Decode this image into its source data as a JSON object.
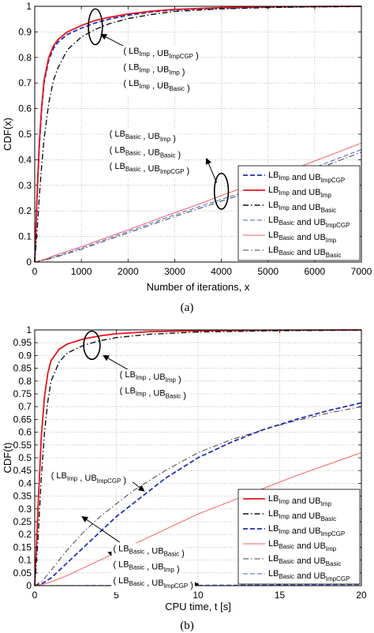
{
  "chart_data": [
    {
      "type": "line",
      "caption": "(a)",
      "xlabel": "Number of iterations, x",
      "ylabel": "CDF(x)",
      "xlim": [
        0,
        7000
      ],
      "ylim": [
        0,
        1
      ],
      "xticks": [
        0,
        1000,
        2000,
        3000,
        4000,
        5000,
        6000,
        7000
      ],
      "xtick_labels": [
        "0",
        "1000",
        "2000",
        "3000",
        "4000",
        "5000",
        "6000",
        "7000"
      ],
      "yticks": [
        0,
        0.1,
        0.2,
        0.3,
        0.4,
        0.5,
        0.6,
        0.7,
        0.8,
        0.9,
        1
      ],
      "ytick_labels": [
        "0",
        "0.1",
        "0.2",
        "0.3",
        "0.4",
        "0.5",
        "0.6",
        "0.7",
        "0.8",
        "0.9",
        "1"
      ],
      "grid": true,
      "legend_position": "bottom-right",
      "series": [
        {
          "legend": [
            [
              "LB",
              "Imp"
            ],
            [
              " and UB",
              "ImpCGP"
            ]
          ],
          "color": "#1f2fbf",
          "style": "dashed",
          "width": 1.8,
          "x": [
            0,
            50,
            100,
            150,
            200,
            300,
            400,
            500,
            700,
            1000,
            1300,
            1600,
            2000,
            2500,
            3000,
            4000,
            5000,
            6000,
            7000
          ],
          "y": [
            0,
            0.25,
            0.46,
            0.6,
            0.7,
            0.79,
            0.835,
            0.86,
            0.89,
            0.915,
            0.935,
            0.95,
            0.965,
            0.978,
            0.986,
            0.993,
            0.997,
            0.999,
            1
          ]
        },
        {
          "legend": [
            [
              "LB",
              "Imp"
            ],
            [
              " and UB",
              "Imp"
            ]
          ],
          "color": "#e8141c",
          "style": "solid",
          "width": 1.8,
          "x": [
            0,
            50,
            100,
            150,
            200,
            300,
            400,
            500,
            700,
            1000,
            1300,
            1600,
            2000,
            2500,
            3000,
            4000,
            5000,
            6000,
            7000
          ],
          "y": [
            0,
            0.26,
            0.47,
            0.61,
            0.71,
            0.8,
            0.845,
            0.87,
            0.9,
            0.925,
            0.945,
            0.957,
            0.97,
            0.981,
            0.988,
            0.995,
            0.998,
            0.999,
            1
          ]
        },
        {
          "legend": [
            [
              "LB",
              "Imp"
            ],
            [
              " and UB",
              "Basic"
            ]
          ],
          "color": "#111111",
          "style": "dashdot",
          "width": 1.4,
          "x": [
            0,
            50,
            100,
            150,
            200,
            300,
            400,
            500,
            700,
            1000,
            1300,
            1600,
            2000,
            2500,
            3000,
            4000,
            5000,
            6000,
            7000
          ],
          "y": [
            0,
            0.12,
            0.26,
            0.38,
            0.48,
            0.62,
            0.71,
            0.76,
            0.83,
            0.88,
            0.91,
            0.932,
            0.952,
            0.968,
            0.98,
            0.99,
            0.995,
            0.998,
            0.999
          ]
        },
        {
          "legend": [
            [
              "LB",
              "Basic"
            ],
            [
              " and UB",
              "ImpCGP"
            ]
          ],
          "color": "#4a5fd6",
          "style": "dashed",
          "width": 1,
          "x": [
            0,
            200,
            500,
            1000,
            1500,
            2000,
            2500,
            3000,
            3500,
            4000,
            4500,
            5000,
            5500,
            6000,
            6500,
            7000
          ],
          "y": [
            0,
            0.008,
            0.025,
            0.055,
            0.087,
            0.12,
            0.152,
            0.185,
            0.215,
            0.245,
            0.275,
            0.31,
            0.34,
            0.37,
            0.405,
            0.44
          ]
        },
        {
          "legend": [
            [
              "LB",
              "Basic"
            ],
            [
              " and UB",
              "Imp"
            ]
          ],
          "color": "#f26060",
          "style": "solid",
          "width": 1,
          "x": [
            0,
            200,
            500,
            1000,
            1500,
            2000,
            2500,
            3000,
            3500,
            4000,
            4500,
            5000,
            5500,
            6000,
            6500,
            7000
          ],
          "y": [
            0,
            0.01,
            0.03,
            0.06,
            0.093,
            0.126,
            0.16,
            0.193,
            0.225,
            0.26,
            0.293,
            0.327,
            0.36,
            0.395,
            0.43,
            0.465
          ]
        },
        {
          "legend": [
            [
              "LB",
              "Basic"
            ],
            [
              " and UB",
              "Basic"
            ]
          ],
          "color": "#444444",
          "style": "dashdot",
          "width": 1,
          "x": [
            0,
            200,
            500,
            1000,
            1500,
            2000,
            2500,
            3000,
            3500,
            4000,
            4500,
            5000,
            5500,
            6000,
            6500,
            7000
          ],
          "y": [
            0,
            0.007,
            0.022,
            0.05,
            0.082,
            0.114,
            0.146,
            0.178,
            0.208,
            0.238,
            0.268,
            0.3,
            0.33,
            0.36,
            0.395,
            0.43
          ]
        }
      ],
      "annotations": [
        {
          "lines": [
            [
              [
                "( LB",
                "Imp"
              ],
              [
                " , UB",
                "ImpCGP"
              ],
              [
                " )",
                ""
              ]
            ],
            [
              [
                "( LB",
                "Imp"
              ],
              [
                " , UB",
                "Imp"
              ],
              [
                " )",
                ""
              ]
            ],
            [
              [
                "( LB",
                "Imp"
              ],
              [
                " , UB",
                "Basic"
              ],
              [
                " )",
                ""
              ]
            ]
          ],
          "text_at": [
            1900,
            0.815
          ],
          "line_gap": 0.063,
          "ellipse": {
            "cx": 1300,
            "cy": 0.92,
            "rx_data": 150,
            "ry_data": 0.07
          },
          "arrow_from": [
            2650,
            0.775
          ],
          "arrow_to": [
            1420,
            0.89
          ]
        },
        {
          "lines": [
            [
              [
                "( LB",
                "Basic"
              ],
              [
                " , UB",
                "Imp"
              ],
              [
                " )",
                ""
              ]
            ],
            [
              [
                "( LB",
                "Basic"
              ],
              [
                " , UB",
                "Basic"
              ],
              [
                " )",
                ""
              ]
            ],
            [
              [
                "( LB",
                "Basic"
              ],
              [
                " , UB",
                "ImpCGP"
              ],
              [
                " )",
                ""
              ]
            ]
          ],
          "text_at": [
            1600,
            0.49
          ],
          "line_gap": 0.063,
          "ellipse": {
            "cx": 4000,
            "cy": 0.277,
            "rx_data": 150,
            "ry_data": 0.07
          },
          "arrow_from": [
            3900,
            0.31
          ],
          "arrow_to": [
            3680,
            0.405
          ]
        }
      ]
    },
    {
      "type": "line",
      "caption": "(b)",
      "xlabel": "CPU time, t [s]",
      "ylabel": "CDF(t)",
      "xlim": [
        0,
        20
      ],
      "ylim": [
        0,
        1
      ],
      "xticks": [
        0,
        5,
        10,
        15,
        20
      ],
      "xtick_labels": [
        "0",
        "5",
        "10",
        "15",
        "20"
      ],
      "yticks": [
        0,
        0.05,
        0.1,
        0.15,
        0.2,
        0.25,
        0.3,
        0.35,
        0.4,
        0.45,
        0.5,
        0.55,
        0.6,
        0.65,
        0.7,
        0.75,
        0.8,
        0.85,
        0.9,
        0.95,
        1
      ],
      "ytick_labels": [
        "0",
        "0.05",
        "0.1",
        "0.15",
        "0.2",
        "0.25",
        "0.3",
        "0.35",
        "0.4",
        "0.45",
        "0.5",
        "0.55",
        "0.6",
        "0.65",
        "0.7",
        "0.75",
        "0.8",
        "0.85",
        "0.9",
        "0.95",
        "1"
      ],
      "grid": true,
      "legend_position": "bottom-right",
      "series": [
        {
          "legend": [
            [
              "LB",
              "Imp"
            ],
            [
              " and UB",
              "Imp"
            ]
          ],
          "color": "#e8141c",
          "style": "solid",
          "width": 1.8,
          "x": [
            0,
            0.2,
            0.4,
            0.6,
            0.8,
            1,
            1.5,
            2,
            3,
            4,
            5,
            7,
            10,
            15,
            20
          ],
          "y": [
            0,
            0.3,
            0.58,
            0.74,
            0.83,
            0.88,
            0.925,
            0.945,
            0.965,
            0.977,
            0.985,
            0.993,
            0.997,
            0.999,
            1
          ]
        },
        {
          "legend": [
            [
              "LB",
              "Imp"
            ],
            [
              " and UB",
              "Basic"
            ]
          ],
          "color": "#111111",
          "style": "dashdot",
          "width": 1.4,
          "x": [
            0,
            0.2,
            0.4,
            0.6,
            0.8,
            1,
            1.5,
            2,
            3,
            4,
            5,
            7,
            10,
            15,
            20
          ],
          "y": [
            0,
            0.18,
            0.42,
            0.6,
            0.72,
            0.8,
            0.875,
            0.91,
            0.94,
            0.958,
            0.97,
            0.983,
            0.992,
            0.997,
            0.999
          ]
        },
        {
          "legend": [
            [
              "LB",
              "Imp"
            ],
            [
              " and UB",
              "ImpCGP"
            ]
          ],
          "color": "#1f2fbf",
          "style": "dashed",
          "width": 1.8,
          "x": [
            0,
            0.5,
            1,
            2,
            3,
            4,
            5,
            6,
            7,
            8,
            10,
            12,
            14,
            16,
            18,
            20
          ],
          "y": [
            0,
            0.01,
            0.03,
            0.09,
            0.15,
            0.21,
            0.27,
            0.32,
            0.37,
            0.42,
            0.5,
            0.56,
            0.61,
            0.65,
            0.685,
            0.715
          ]
        },
        {
          "legend": [
            [
              "LB",
              "Basic"
            ],
            [
              " and UB",
              "Imp"
            ]
          ],
          "color": "#f26060",
          "style": "solid",
          "width": 1,
          "x": [
            0,
            0.5,
            1,
            2,
            3,
            4,
            5,
            6,
            8,
            10,
            12,
            14,
            16,
            18,
            20
          ],
          "y": [
            0,
            0.005,
            0.015,
            0.04,
            0.07,
            0.1,
            0.13,
            0.16,
            0.22,
            0.28,
            0.33,
            0.38,
            0.43,
            0.475,
            0.52
          ]
        },
        {
          "legend": [
            [
              "LB",
              "Basic"
            ],
            [
              " and UB",
              "Basic"
            ]
          ],
          "color": "#444444",
          "style": "dashdot",
          "width": 1,
          "x": [
            0,
            0.5,
            1,
            2,
            3,
            4,
            5,
            6,
            7,
            8,
            10,
            12,
            14,
            16,
            18,
            20
          ],
          "y": [
            0,
            0.02,
            0.06,
            0.14,
            0.21,
            0.27,
            0.32,
            0.37,
            0.41,
            0.45,
            0.52,
            0.57,
            0.61,
            0.645,
            0.675,
            0.7
          ]
        },
        {
          "legend": [
            [
              "LB",
              "Basic"
            ],
            [
              " and UB",
              "ImpCGP"
            ]
          ],
          "color": "#4a5fd6",
          "style": "dashed",
          "width": 1,
          "x": [
            0,
            5,
            10,
            15,
            20
          ],
          "y": [
            0,
            0.001,
            0.002,
            0.003,
            0.004
          ]
        }
      ],
      "annotations": [
        {
          "lines": [
            [
              [
                "( LB",
                "Imp"
              ],
              [
                " , UB",
                "Imp"
              ],
              [
                " )",
                ""
              ]
            ],
            [
              [
                "( LB",
                "Imp"
              ],
              [
                " , UB",
                "Basic"
              ],
              [
                " )",
                ""
              ]
            ]
          ],
          "text_at": [
            5.2,
            0.815
          ],
          "line_gap": 0.063,
          "ellipse": {
            "cx": 3.5,
            "cy": 0.94,
            "rx_data": 0.5,
            "ry_data": 0.055
          },
          "arrow_from": [
            7.2,
            0.79
          ],
          "arrow_to": [
            4.2,
            0.9
          ]
        },
        {
          "lines": [
            [
              [
                "( LB",
                "Imp"
              ],
              [
                " , UB",
                "ImpCGP"
              ],
              [
                " )",
                ""
              ]
            ]
          ],
          "text_at": [
            1.0,
            0.42
          ],
          "line_gap": 0.063,
          "arrow_from": [
            6.0,
            0.405
          ],
          "arrow_to": [
            6.7,
            0.37
          ]
        },
        {
          "lines": [
            [
              [
                "( LB",
                "Basic"
              ],
              [
                " , UB",
                "Basic"
              ],
              [
                " )",
                ""
              ]
            ],
            [
              [
                "( LB",
                "Basic"
              ],
              [
                " , UB",
                "Imp"
              ],
              [
                " )",
                ""
              ]
            ],
            [
              [
                "( LB",
                "Basic"
              ],
              [
                " , UB",
                "ImpCGP"
              ],
              [
                " )",
                ""
              ]
            ]
          ],
          "text_at": [
            4.8,
            0.135
          ],
          "line_gap": 0.063,
          "arrow_from": [
            5.2,
            0.17
          ],
          "arrow_to": [
            2.9,
            0.27
          ],
          "extra_arrows": [
            {
              "from": [
                6.0,
                0.1
              ],
              "to": [
                4.5,
                0.13
              ]
            },
            {
              "from": [
                6.5,
                0.025
              ],
              "to": [
                10.0,
                0.005
              ]
            }
          ]
        }
      ]
    }
  ]
}
